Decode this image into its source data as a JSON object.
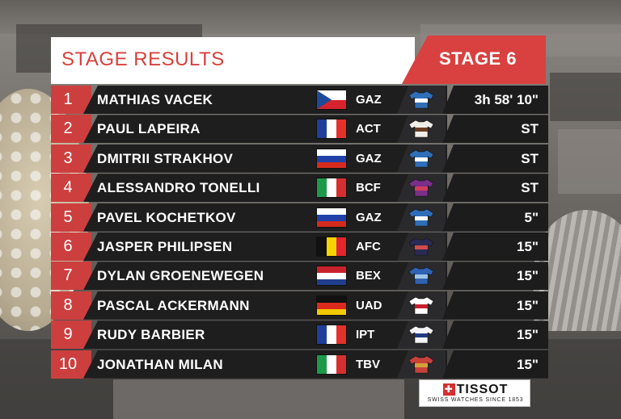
{
  "header": {
    "title": "STAGE RESULTS",
    "stage": "STAGE 6"
  },
  "colors": {
    "accent_red": "#d8413f",
    "row_dark": "#1e1e1f"
  },
  "results": [
    {
      "pos": "1",
      "name": "MATHIAS VACEK",
      "flag": "czech",
      "team": "GAZ",
      "jersey": "gazprom-jersey-icon",
      "time": "3h 58' 10\""
    },
    {
      "pos": "2",
      "name": "PAUL LAPEIRA",
      "flag": "france",
      "team": "ACT",
      "jersey": "ag2r-jersey-icon",
      "time": "ST"
    },
    {
      "pos": "3",
      "name": "DMITRII STRAKHOV",
      "flag": "russia",
      "team": "GAZ",
      "jersey": "gazprom-jersey-icon",
      "time": "ST"
    },
    {
      "pos": "4",
      "name": "ALESSANDRO TONELLI",
      "flag": "italy",
      "team": "BCF",
      "jersey": "bardiani-jersey-icon",
      "time": "ST"
    },
    {
      "pos": "5",
      "name": "PAVEL KOCHETKOV",
      "flag": "russia",
      "team": "GAZ",
      "jersey": "gazprom-jersey-icon",
      "time": "5\""
    },
    {
      "pos": "6",
      "name": "JASPER PHILIPSEN",
      "flag": "belgium",
      "team": "AFC",
      "jersey": "alpecin-jersey-icon",
      "time": "15\""
    },
    {
      "pos": "7",
      "name": "DYLAN GROENEWEGEN",
      "flag": "netherlands",
      "team": "BEX",
      "jersey": "bikeexchange-jersey-icon",
      "time": "15\""
    },
    {
      "pos": "8",
      "name": "PASCAL ACKERMANN",
      "flag": "germany",
      "team": "UAD",
      "jersey": "uae-jersey-icon",
      "time": "15\""
    },
    {
      "pos": "9",
      "name": "RUDY BARBIER",
      "flag": "france",
      "team": "IPT",
      "jersey": "israel-jersey-icon",
      "time": "15\""
    },
    {
      "pos": "10",
      "name": "JONATHAN MILAN",
      "flag": "italy",
      "team": "TBV",
      "jersey": "bahrain-jersey-icon",
      "time": "15\""
    }
  ],
  "sponsor": {
    "name": "TISSOT",
    "tagline": "SWISS WATCHES SINCE 1853"
  }
}
